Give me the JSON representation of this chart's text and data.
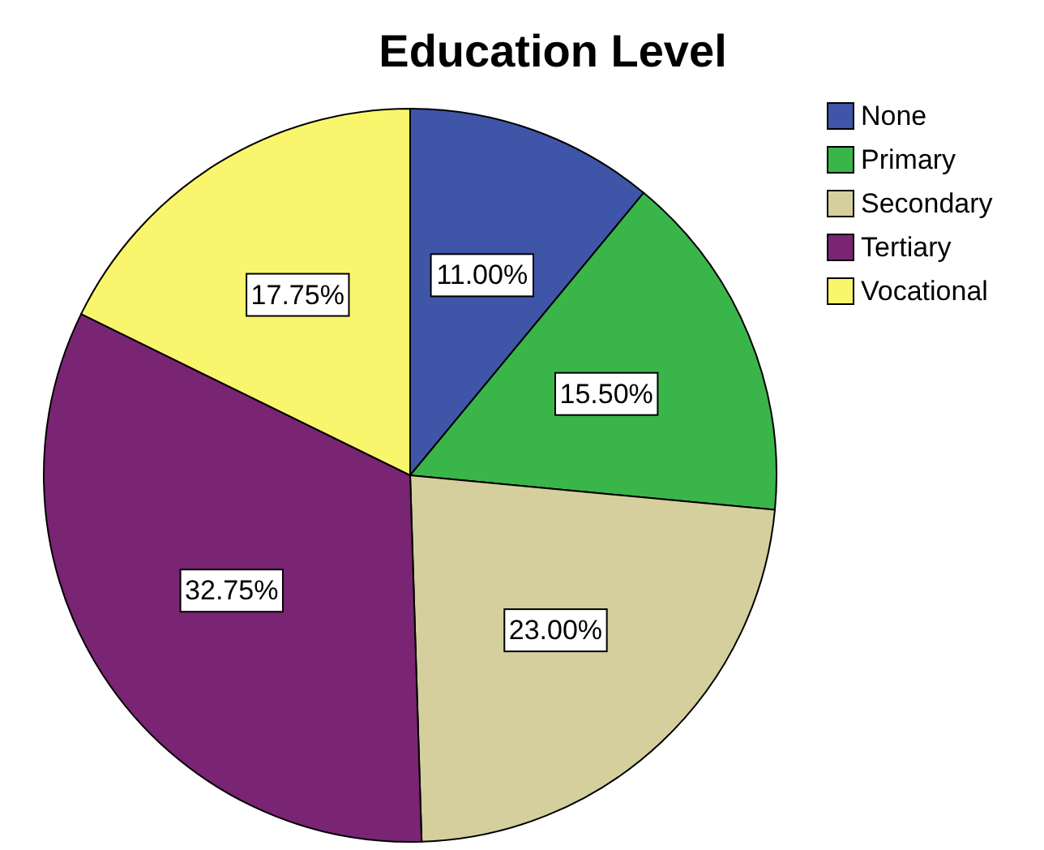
{
  "chart_data": {
    "type": "pie",
    "title": "Education Level",
    "categories": [
      "None",
      "Primary",
      "Secondary",
      "Tertiary",
      "Vocational"
    ],
    "values": [
      11,
      15.5,
      23,
      32.75,
      17.75
    ],
    "colors": [
      "#3f55a8",
      "#3ab54a",
      "#d5cf9e",
      "#7a2474",
      "#f9f66e"
    ],
    "value_labels": [
      "11.00%",
      "15.50%",
      "23.00%",
      "32.75%",
      "17.75%"
    ],
    "legend": "top right"
  }
}
